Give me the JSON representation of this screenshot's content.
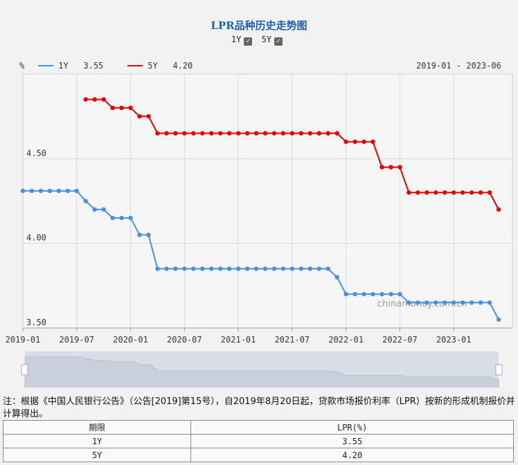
{
  "header": {
    "title": "LPR品种历史走势图",
    "toggles": [
      {
        "label": "1Y",
        "checked": true
      },
      {
        "label": "5Y",
        "checked": true
      }
    ]
  },
  "legend": {
    "unit": "%",
    "items": [
      {
        "name": "1Y",
        "value": "3.55",
        "color": "#4a90e2"
      },
      {
        "name": "5Y",
        "value": "4.20",
        "color": "#e60000"
      }
    ],
    "range": "2019-01 - 2023-06"
  },
  "watermark": "chinamoney.com.cn",
  "chart_data": {
    "type": "line",
    "x": [
      "2019-01",
      "2019-02",
      "2019-03",
      "2019-04",
      "2019-05",
      "2019-06",
      "2019-07",
      "2019-08",
      "2019-09",
      "2019-10",
      "2019-11",
      "2019-12",
      "2020-01",
      "2020-02",
      "2020-03",
      "2020-04",
      "2020-05",
      "2020-06",
      "2020-07",
      "2020-08",
      "2020-09",
      "2020-10",
      "2020-11",
      "2020-12",
      "2021-01",
      "2021-02",
      "2021-03",
      "2021-04",
      "2021-05",
      "2021-06",
      "2021-07",
      "2021-08",
      "2021-09",
      "2021-10",
      "2021-11",
      "2021-12",
      "2022-01",
      "2022-02",
      "2022-03",
      "2022-04",
      "2022-05",
      "2022-06",
      "2022-07",
      "2022-08",
      "2022-09",
      "2022-10",
      "2022-11",
      "2022-12",
      "2023-01",
      "2023-02",
      "2023-03",
      "2023-04",
      "2023-05",
      "2023-06"
    ],
    "series": [
      {
        "name": "1Y",
        "color": "#4a90e2",
        "values": [
          4.31,
          4.31,
          4.31,
          4.31,
          4.31,
          4.31,
          4.31,
          4.25,
          4.2,
          4.2,
          4.15,
          4.15,
          4.15,
          4.05,
          4.05,
          3.85,
          3.85,
          3.85,
          3.85,
          3.85,
          3.85,
          3.85,
          3.85,
          3.85,
          3.85,
          3.85,
          3.85,
          3.85,
          3.85,
          3.85,
          3.85,
          3.85,
          3.85,
          3.85,
          3.85,
          3.8,
          3.7,
          3.7,
          3.7,
          3.7,
          3.7,
          3.7,
          3.7,
          3.65,
          3.65,
          3.65,
          3.65,
          3.65,
          3.65,
          3.65,
          3.65,
          3.65,
          3.65,
          3.55
        ]
      },
      {
        "name": "5Y",
        "color": "#e60000",
        "values": [
          null,
          null,
          null,
          null,
          null,
          null,
          null,
          4.85,
          4.85,
          4.85,
          4.8,
          4.8,
          4.8,
          4.75,
          4.75,
          4.65,
          4.65,
          4.65,
          4.65,
          4.65,
          4.65,
          4.65,
          4.65,
          4.65,
          4.65,
          4.65,
          4.65,
          4.65,
          4.65,
          4.65,
          4.65,
          4.65,
          4.65,
          4.65,
          4.65,
          4.65,
          4.6,
          4.6,
          4.6,
          4.6,
          4.45,
          4.45,
          4.45,
          4.3,
          4.3,
          4.3,
          4.3,
          4.3,
          4.3,
          4.3,
          4.3,
          4.3,
          4.3,
          4.2
        ]
      }
    ],
    "x_ticks": [
      "2019-01",
      "2019-07",
      "2020-01",
      "2020-07",
      "2021-01",
      "2021-07",
      "2022-01",
      "2022-07",
      "2023-01"
    ],
    "y_ticks": [
      "3.50",
      "4.00",
      "4.50"
    ],
    "ylim": [
      3.5,
      5.0
    ],
    "grid": true,
    "legend": "top-left"
  },
  "note": "注：根据《中国人民银行公告》（公告[2019]第15号），自2019年8月20日起，贷款市场报价利率（LPR）按新的形成机制报价并计算得出。",
  "table": {
    "headers": [
      "期限",
      "LPR(%)"
    ],
    "rows": [
      [
        "1Y",
        "3.55"
      ],
      [
        "5Y",
        "4.20"
      ]
    ]
  }
}
